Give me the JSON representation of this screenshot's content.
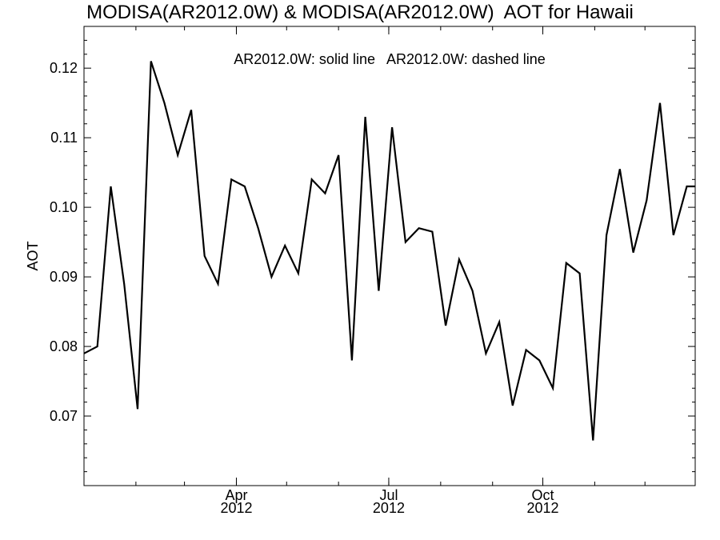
{
  "chart_data": {
    "type": "line",
    "title": "MODISA(AR2012.0W) & MODISA(AR2012.0W)  AOT for Hawaii",
    "ylabel": "AOT",
    "xlabel": "",
    "annotation": "AR2012.0W: solid line   AR2012.0W: dashed line",
    "xlim": [
      "2012-01-01",
      "2012-12-31"
    ],
    "ylim": [
      0.06,
      0.126
    ],
    "yticks": [
      {
        "value": 0.07,
        "label": "0.07"
      },
      {
        "value": 0.08,
        "label": "0.08"
      },
      {
        "value": 0.09,
        "label": "0.09"
      },
      {
        "value": 0.1,
        "label": "0.10"
      },
      {
        "value": 0.11,
        "label": "0.11"
      },
      {
        "value": 0.12,
        "label": "0.12"
      }
    ],
    "xticks": [
      {
        "value": "2012-04-01",
        "month": "Apr",
        "year": "2012"
      },
      {
        "value": "2012-07-01",
        "month": "Jul",
        "year": "2012"
      },
      {
        "value": "2012-10-01",
        "month": "Oct",
        "year": "2012"
      }
    ],
    "grid": false,
    "series": [
      {
        "line_style": "solid",
        "color": "#000000",
        "x": [
          "2012-01-01",
          "2012-01-09",
          "2012-01-17",
          "2012-01-25",
          "2012-02-02",
          "2012-02-10",
          "2012-02-18",
          "2012-02-26",
          "2012-03-05",
          "2012-03-13",
          "2012-03-21",
          "2012-03-29",
          "2012-04-06",
          "2012-04-14",
          "2012-04-22",
          "2012-04-30",
          "2012-05-08",
          "2012-05-16",
          "2012-05-24",
          "2012-06-01",
          "2012-06-09",
          "2012-06-17",
          "2012-06-25",
          "2012-07-03",
          "2012-07-11",
          "2012-07-19",
          "2012-07-27",
          "2012-08-04",
          "2012-08-12",
          "2012-08-20",
          "2012-08-28",
          "2012-09-05",
          "2012-09-13",
          "2012-09-21",
          "2012-09-29",
          "2012-10-07",
          "2012-10-15",
          "2012-10-23",
          "2012-10-31",
          "2012-11-08",
          "2012-11-16",
          "2012-11-24",
          "2012-12-02",
          "2012-12-10",
          "2012-12-18",
          "2012-12-26",
          "2012-12-31"
        ],
        "values": [
          0.079,
          0.08,
          0.103,
          0.089,
          0.071,
          0.121,
          0.115,
          0.1075,
          0.114,
          0.093,
          0.089,
          0.104,
          0.103,
          0.097,
          0.09,
          0.0945,
          0.0905,
          0.104,
          0.102,
          0.1075,
          0.078,
          0.113,
          0.088,
          0.1115,
          0.095,
          0.097,
          0.0965,
          0.083,
          0.0925,
          0.088,
          0.079,
          0.0835,
          0.0715,
          0.0795,
          0.078,
          0.074,
          0.092,
          0.0905,
          0.0665,
          0.096,
          0.1055,
          0.0935,
          0.101,
          0.115,
          0.096,
          0.103,
          0.103
        ]
      }
    ]
  }
}
